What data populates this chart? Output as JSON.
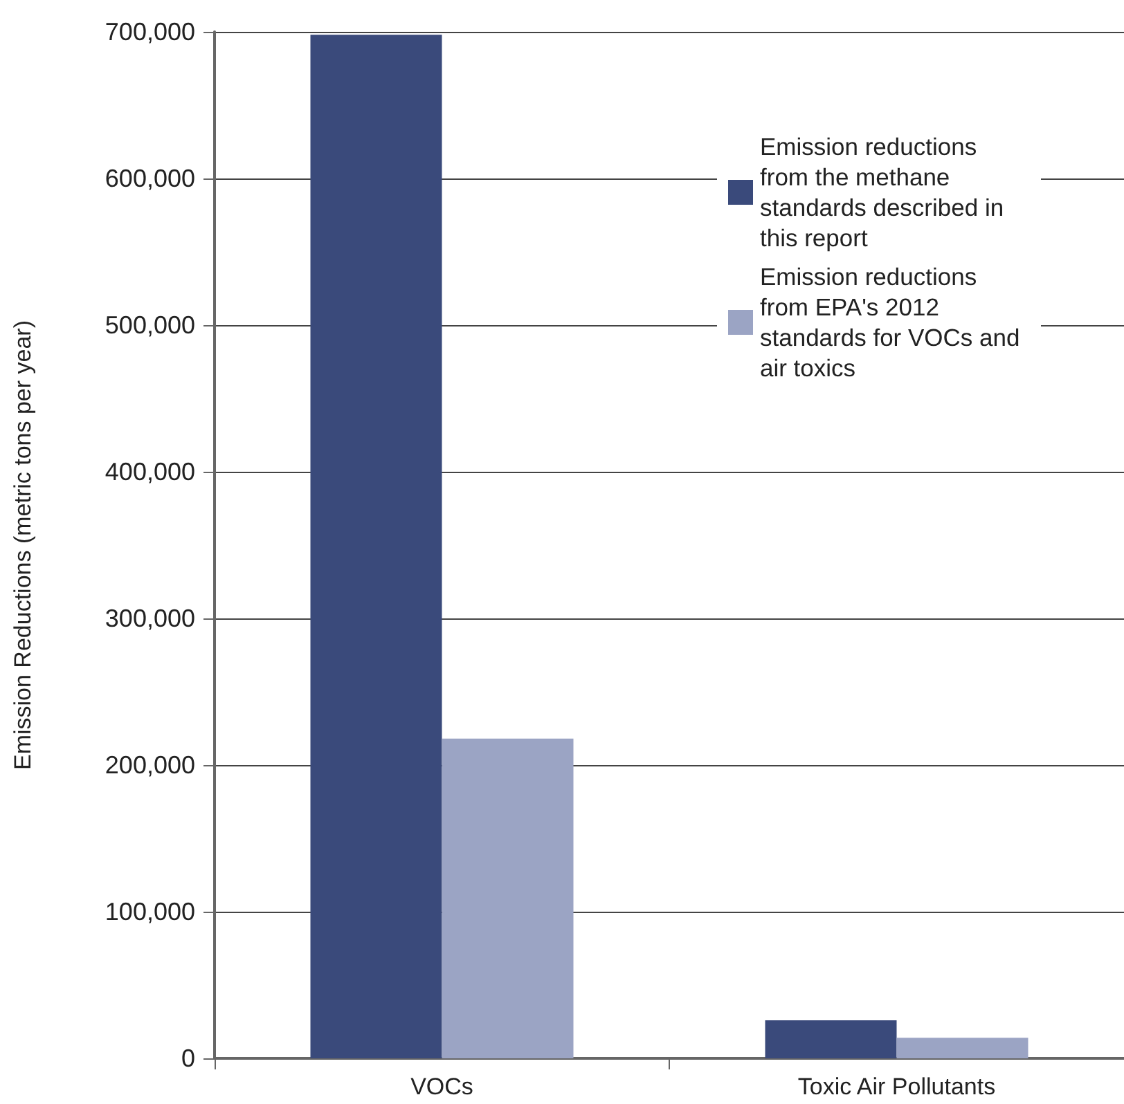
{
  "chart_data": {
    "type": "bar",
    "ylabel": "Emission Reductions (metric tons per year)",
    "categories": [
      "VOCs",
      "Toxic Air Pollutants"
    ],
    "series": [
      {
        "name": "Emission reductions from the methane standards described in this report",
        "color": "#3a4a7b",
        "values": [
          698000,
          26000
        ]
      },
      {
        "name": "Emission reductions from EPA's 2012 standards for VOCs and air toxics",
        "color": "#9ba4c4",
        "values": [
          218000,
          14000
        ]
      }
    ],
    "ylim": [
      0,
      700000
    ],
    "yticks": [
      0,
      {
        "value": 100000,
        "label": "100,000"
      },
      {
        "value": 200000,
        "label": "200,000"
      },
      {
        "value": 300000,
        "label": "300,000"
      },
      {
        "value": 400000,
        "label": "400,000"
      },
      {
        "value": 500000,
        "label": "500,000"
      },
      {
        "value": 600000,
        "label": "600,000"
      },
      {
        "value": 700000,
        "label": "700,000"
      }
    ],
    "grid": "y",
    "legend": "top right"
  }
}
